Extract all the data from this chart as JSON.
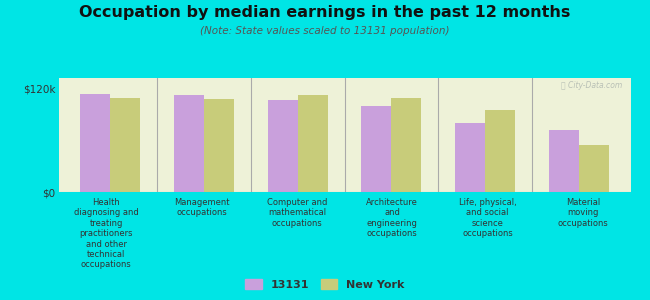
{
  "title": "Occupation by median earnings in the past 12 months",
  "subtitle": "(Note: State values scaled to 13131 population)",
  "background_color": "#00e5e5",
  "plot_bg_color": "#eef2d8",
  "categories": [
    "Health\ndiagnosing and\ntreating\npractitioners\nand other\ntechnical\noccupations",
    "Management\noccupations",
    "Computer and\nmathematical\noccupations",
    "Architecture\nand\nengineering\noccupations",
    "Life, physical,\nand social\nscience\noccupations",
    "Material\nmoving\noccupations"
  ],
  "values_13131": [
    113000,
    112000,
    106000,
    100000,
    80000,
    72000
  ],
  "values_ny": [
    109000,
    108000,
    112000,
    109000,
    95000,
    55000
  ],
  "color_13131": "#c9a0dc",
  "color_ny": "#c8cc7a",
  "ymax": 132000,
  "legend_label_1": "13131",
  "legend_label_2": "New York",
  "watermark": "Ⓢ City-Data.com"
}
